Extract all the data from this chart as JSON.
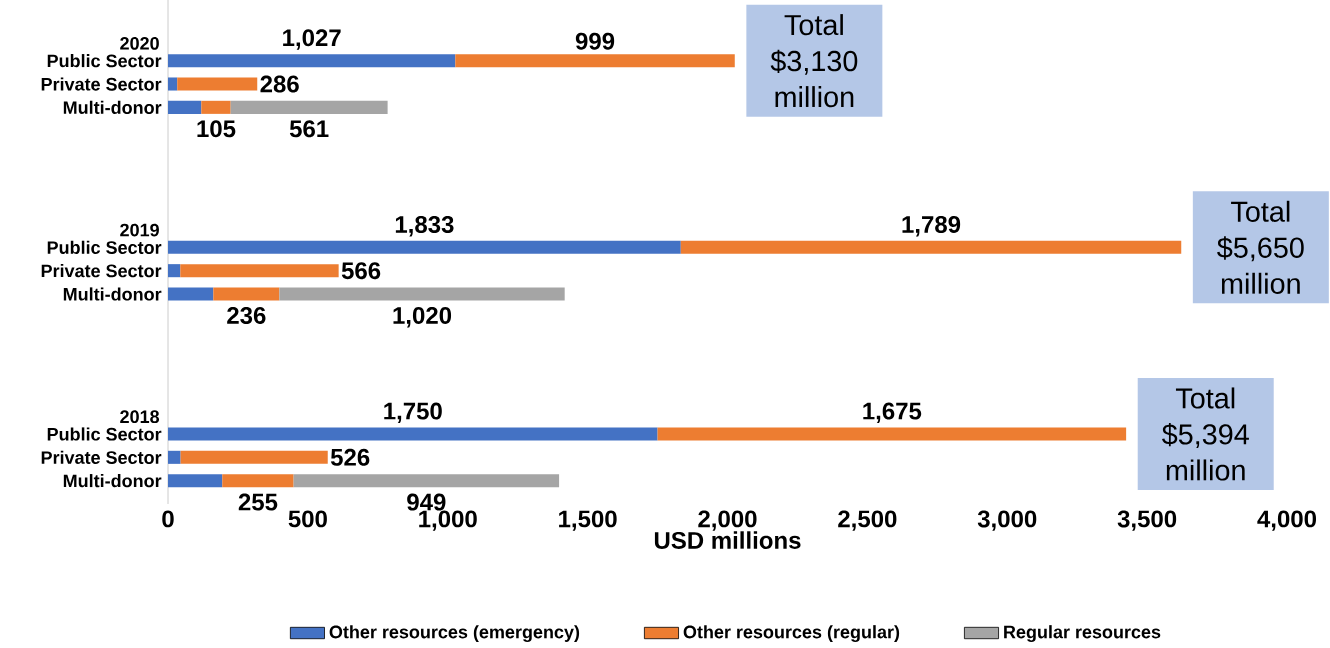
{
  "chart_data": {
    "type": "bar",
    "orientation": "horizontal",
    "stacked": true,
    "categories": [
      "Public Sector",
      "Private Sector",
      "Multi-donor",
      null,
      null,
      null,
      null,
      null,
      "Public Sector",
      "Private Sector",
      "Multi-donor",
      null,
      null,
      null,
      null,
      null,
      "Public Sector",
      "Private Sector",
      "Multi-donor"
    ],
    "series": [
      {
        "name": "Other resources (emergency)",
        "color": "#4472c4",
        "values": [
          1027,
          33,
          119,
          null,
          null,
          null,
          null,
          null,
          1833,
          44,
          162,
          null,
          null,
          null,
          null,
          null,
          1750,
          45,
          194
        ],
        "value_labels": [
          "1,027",
          null,
          null,
          null,
          null,
          null,
          null,
          null,
          "1,833",
          null,
          null,
          null,
          null,
          null,
          null,
          null,
          "1,750",
          null,
          null
        ]
      },
      {
        "name": "Other resources (regular)",
        "color": "#ed7d31",
        "values": [
          999,
          286,
          105,
          null,
          null,
          null,
          null,
          null,
          1789,
          566,
          236,
          null,
          null,
          null,
          null,
          null,
          1675,
          526,
          255
        ],
        "value_labels": [
          "999",
          "286",
          "105",
          null,
          null,
          null,
          null,
          null,
          "1,789",
          "566",
          "236",
          null,
          null,
          null,
          null,
          null,
          "1,675",
          "526",
          "255"
        ]
      },
      {
        "name": "Regular resources",
        "color": "#a5a5a5",
        "values": [
          null,
          null,
          561,
          null,
          null,
          null,
          null,
          null,
          null,
          null,
          1020,
          null,
          null,
          null,
          null,
          null,
          null,
          null,
          949
        ],
        "value_labels": [
          null,
          null,
          "561",
          null,
          null,
          null,
          null,
          null,
          null,
          null,
          "1,020",
          null,
          null,
          null,
          null,
          null,
          null,
          null,
          "949"
        ]
      }
    ],
    "xlim": [
      0,
      4000
    ],
    "xticks": [
      0,
      500,
      {
        "value": 1000,
        "label": "1,000"
      },
      {
        "value": 1500,
        "label": "1,500"
      },
      {
        "value": 2000,
        "label": "2,000"
      },
      {
        "value": 2500,
        "label": "2,500"
      },
      {
        "value": 3000,
        "label": "3,000"
      },
      {
        "value": 3500,
        "label": "3,500"
      },
      {
        "value": 4000,
        "label": "4,000"
      }
    ],
    "xlabel": "USD millions",
    "legend": "bottom",
    "annotations": [
      "2020",
      "2019",
      "2018",
      "Total $3,130 million",
      "Total $5,650 million",
      "Total $5,394 million"
    ]
  }
}
